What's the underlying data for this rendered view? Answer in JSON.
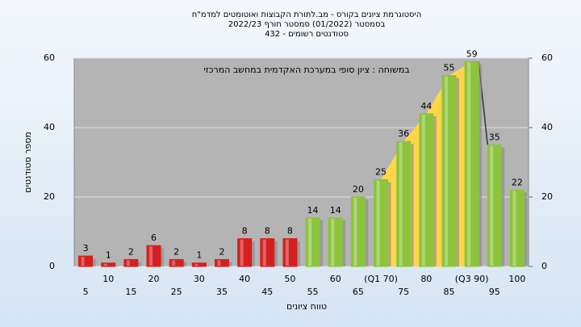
{
  "chart_data": {
    "type": "bar",
    "title": "היסטוגרמת ציונים בקורס - מב.לתורת הקבוצות ואוטומטים למדמ\"ח",
    "subtitle": "בסמסטר  (01/2022)  סמסטר חורף 2022/23",
    "subtitle2": "סטודנטים רשומים - 432",
    "annotation": "במשוחה : ציון סופי במערכת האקדמית במחשב המרכזי",
    "x_label": "טווח ציונים",
    "y_label": "מספר סטודנטים",
    "categories": [
      "5",
      "10",
      "15",
      "20",
      "25",
      "30",
      "35",
      "40",
      "45",
      "50",
      "55",
      "60",
      "65",
      "(Q1 70)",
      "75",
      "80",
      "85",
      "(Q3 90)",
      "95",
      "100"
    ],
    "values": [
      3,
      1,
      2,
      6,
      2,
      1,
      2,
      8,
      8,
      8,
      14,
      14,
      20,
      25,
      36,
      44,
      55,
      59,
      35,
      22
    ],
    "colors": [
      "#d42020",
      "#d42020",
      "#d42020",
      "#d42020",
      "#d42020",
      "#d42020",
      "#d42020",
      "#d42020",
      "#d42020",
      "#d42020",
      "#8cc43c",
      "#8cc43c",
      "#8cc43c",
      "#8cc43c",
      "#8cc43c",
      "#8cc43c",
      "#8cc43c",
      "#8cc43c",
      "#8cc43c",
      "#8cc43c"
    ],
    "quartile_range": [
      13,
      17
    ],
    "quartile_color": "#ffd54a",
    "ylim": [
      0,
      60
    ],
    "yticks": [
      0,
      20,
      40,
      60
    ],
    "y2lim": [
      0,
      60
    ],
    "y2ticks": [
      0,
      20,
      40,
      60
    ],
    "grid": true
  }
}
